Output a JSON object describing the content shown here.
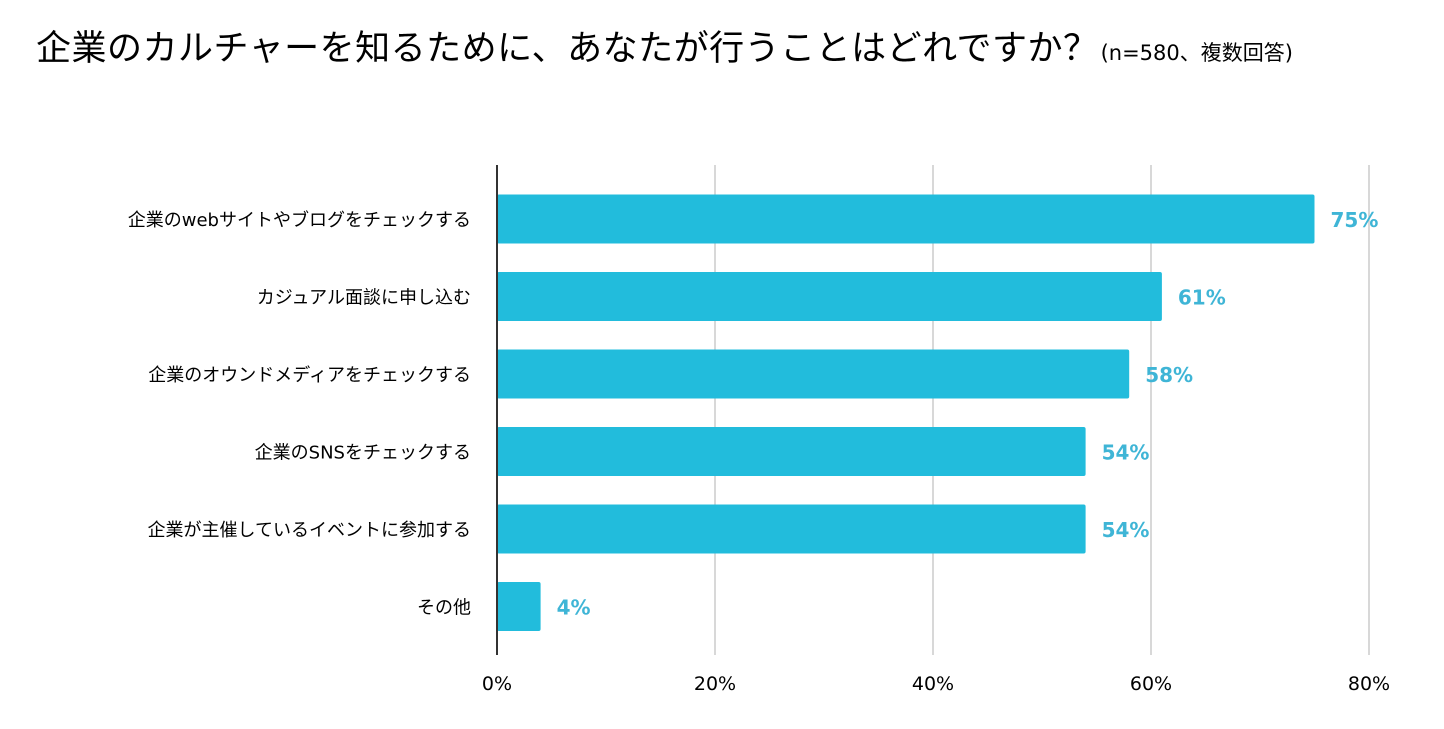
{
  "chart_data": {
    "type": "bar",
    "orientation": "horizontal",
    "title": "企業のカルチャーを知るために、あなたが行うことはどれですか？",
    "subtitle": "(n=580、複数回答)",
    "categories": [
      "企業のwebサイトやブログをチェックする",
      "カジュアル面談に申し込む",
      "企業のオウンドメディアをチェックする",
      "企業のSNSをチェックする",
      "企業が主催しているイベントに参加する",
      "その他"
    ],
    "values": [
      75,
      61,
      58,
      54,
      54,
      4
    ],
    "data_labels": [
      "75%",
      "61%",
      "58%",
      "54%",
      "54%",
      "4%"
    ],
    "xlim": [
      0,
      80
    ],
    "x_ticks": [
      0,
      20,
      40,
      60,
      80
    ],
    "x_tick_labels": [
      "0%",
      "20%",
      "40%",
      "60%",
      "80%"
    ],
    "xlabel": "",
    "ylabel": "",
    "grid": true,
    "legend": "none",
    "colors": {
      "bar": "#22bcdc",
      "label": "#3fb5d6",
      "grid": "#cccccc",
      "axis": "#333333"
    }
  }
}
